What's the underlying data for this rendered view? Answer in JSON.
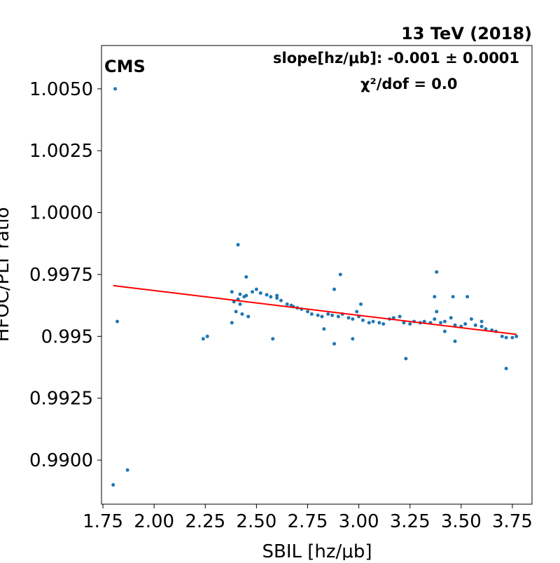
{
  "chart_data": {
    "type": "scatter",
    "energy_label": "13 TeV (2018)",
    "experiment_label": "CMS",
    "slope_label": "slope[hz/μb]: -0.001 ± 0.0001",
    "chi2_label": "χ²/dof = 0.0",
    "xlabel": "SBIL [hz/μb]",
    "ylabel": "HFOC/PLT ratio",
    "xlim": [
      1.743,
      3.846
    ],
    "ylim": [
      0.98822,
      1.00675
    ],
    "xticks": [
      1.75,
      {
        "value": 2.0,
        "label": "2.00"
      },
      2.25,
      {
        "value": 2.5,
        "label": "2.50"
      },
      2.75,
      {
        "value": 3.0,
        "label": "3.00"
      },
      3.25,
      {
        "value": 3.5,
        "label": "3.50"
      },
      3.75
    ],
    "yticks": [
      {
        "value": 0.99,
        "label": "0.9900"
      },
      0.9925,
      0.995,
      0.9975,
      {
        "value": 1.0,
        "label": "1.0000"
      },
      1.0025,
      {
        "value": 1.005,
        "label": "1.0050"
      }
    ],
    "series": [
      {
        "name": "data",
        "color": "#1f77b4",
        "x": [
          1.81,
          1.82,
          1.8,
          1.87,
          2.24,
          2.26,
          2.41,
          2.45,
          2.58,
          2.88,
          2.91,
          2.88,
          2.97,
          3.23,
          3.38,
          3.37,
          3.46,
          3.53,
          3.72,
          3.47,
          3.42,
          2.83,
          2.45,
          2.48,
          2.5,
          2.52,
          2.55,
          2.57,
          2.6,
          2.62,
          2.65,
          2.67,
          2.7,
          2.72,
          2.75,
          2.77,
          2.8,
          2.82,
          2.85,
          2.87,
          2.9,
          2.92,
          2.95,
          2.97,
          3.0,
          3.02,
          3.05,
          3.07,
          3.1,
          3.12,
          3.15,
          3.17,
          3.2,
          3.22,
          3.25,
          3.27,
          3.3,
          3.32,
          3.35,
          3.37,
          3.4,
          3.42,
          3.45,
          3.47,
          3.5,
          3.52,
          3.55,
          3.57,
          3.6,
          3.62,
          3.65,
          3.67,
          3.7,
          3.72,
          3.75,
          3.77,
          2.99,
          3.01,
          2.6,
          2.68,
          3.38,
          3.6,
          2.38,
          2.39,
          2.4,
          2.41,
          2.42,
          2.43,
          2.44,
          2.38,
          2.46,
          2.42
        ],
        "y": [
          1.005,
          0.9956,
          0.989,
          0.9896,
          0.9949,
          0.995,
          0.9987,
          0.9974,
          0.9949,
          0.9947,
          0.9975,
          0.9969,
          0.9949,
          0.9941,
          0.9976,
          0.9966,
          0.9966,
          0.9966,
          0.9937,
          0.9948,
          0.9952,
          0.9953,
          0.99665,
          0.9968,
          0.9969,
          0.99675,
          0.99668,
          0.9966,
          0.99655,
          0.99645,
          0.9963,
          0.99625,
          0.99615,
          0.9961,
          0.996,
          0.9959,
          0.99585,
          0.9958,
          0.9959,
          0.99585,
          0.9958,
          0.9959,
          0.99575,
          0.9957,
          0.9958,
          0.99565,
          0.99555,
          0.9956,
          0.99555,
          0.9955,
          0.9957,
          0.99575,
          0.9958,
          0.99555,
          0.9955,
          0.9956,
          0.99555,
          0.9956,
          0.99555,
          0.9957,
          0.99555,
          0.9956,
          0.99575,
          0.99545,
          0.9954,
          0.9955,
          0.9957,
          0.99545,
          0.9954,
          0.9953,
          0.99525,
          0.9952,
          0.995,
          0.99495,
          0.99495,
          0.995,
          0.996,
          0.9963,
          0.99665,
          0.9962,
          0.996,
          0.9956,
          0.9968,
          0.9964,
          0.996,
          0.9965,
          0.9963,
          0.9959,
          0.9966,
          0.99555,
          0.9958,
          0.9967
        ]
      },
      {
        "name": "fit",
        "color": "#ff0000",
        "x": [
          1.8,
          3.77
        ],
        "y": [
          0.99705,
          0.99508
        ]
      }
    ]
  }
}
